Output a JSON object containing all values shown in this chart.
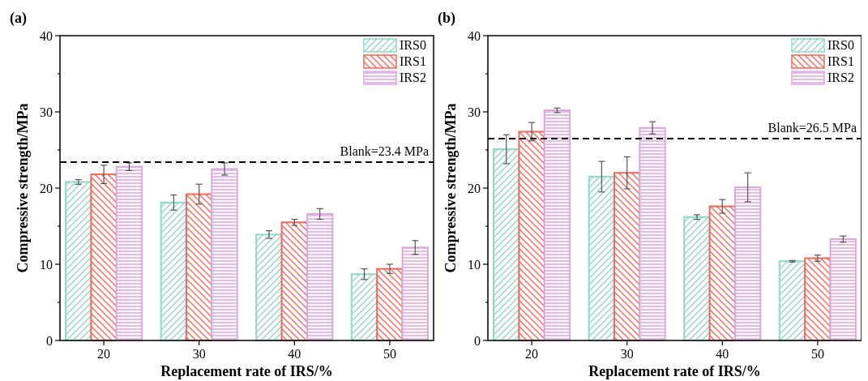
{
  "chart_data": [
    {
      "type": "bar",
      "title": "(a)",
      "xlabel": "Replacement rate of IRS/%",
      "ylabel": "Compressive strength/MPa",
      "categories": [
        "20",
        "30",
        "40",
        "50"
      ],
      "series": [
        {
          "name": "IRS0",
          "color": "#8fd9c3",
          "values": [
            20.8,
            18.1,
            13.9,
            8.7
          ],
          "errors": [
            0.3,
            1.0,
            0.5,
            0.7
          ]
        },
        {
          "name": "IRS1",
          "color": "#ef6a5a",
          "values": [
            21.8,
            19.2,
            15.5,
            9.4
          ],
          "errors": [
            1.2,
            1.3,
            0.4,
            0.6
          ]
        },
        {
          "name": "IRS2",
          "color": "#dca6e0",
          "values": [
            22.8,
            22.5,
            16.6,
            12.2
          ],
          "errors": [
            0.5,
            0.8,
            0.7,
            0.9
          ]
        }
      ],
      "ylim": [
        0,
        40
      ],
      "yticks": [
        0,
        {
          "value": 5,
          "label": null
        },
        10,
        {
          "value": 15,
          "label": null
        },
        20,
        {
          "value": 25,
          "label": null
        },
        30,
        {
          "value": 35,
          "label": null
        },
        40
      ],
      "ref_lines": [
        {
          "axis": "y",
          "value": 23.4,
          "label": "Blank=23.4 MPa",
          "color": "#000000",
          "line_style": "dashed"
        }
      ],
      "legend": "top right",
      "grid": false
    },
    {
      "type": "bar",
      "title": "(b)",
      "xlabel": "Replacement rate of IRS/%",
      "ylabel": "Compressive strength/MPa",
      "categories": [
        "20",
        "30",
        "40",
        "50"
      ],
      "series": [
        {
          "name": "IRS0",
          "color": "#8fd9c3",
          "values": [
            25.1,
            21.5,
            16.2,
            10.4
          ],
          "errors": [
            1.9,
            2.0,
            0.3,
            0.1
          ]
        },
        {
          "name": "IRS1",
          "color": "#ef6a5a",
          "values": [
            27.4,
            22.0,
            17.6,
            10.8
          ],
          "errors": [
            1.2,
            2.1,
            0.9,
            0.4
          ]
        },
        {
          "name": "IRS2",
          "color": "#dca6e0",
          "values": [
            30.2,
            27.9,
            20.1,
            13.3
          ],
          "errors": [
            0.3,
            0.8,
            1.9,
            0.4
          ]
        }
      ],
      "ylim": [
        0,
        40
      ],
      "yticks": [
        0,
        {
          "value": 5,
          "label": null
        },
        10,
        {
          "value": 15,
          "label": null
        },
        20,
        {
          "value": 25,
          "label": null
        },
        30,
        {
          "value": 35,
          "label": null
        },
        40
      ],
      "ref_lines": [
        {
          "axis": "y",
          "value": 26.5,
          "label": "Blank=26.5 MPa",
          "color": "#000000",
          "line_style": "dashed"
        }
      ],
      "legend": "top right",
      "grid": false
    }
  ]
}
